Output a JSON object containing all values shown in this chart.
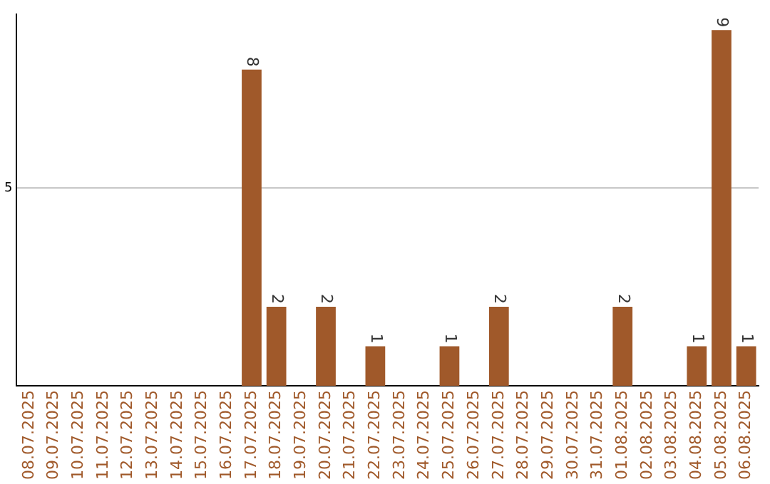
{
  "chart_data": {
    "type": "bar",
    "categories": [
      "08.07.2025",
      "09.07.2025",
      "10.07.2025",
      "11.07.2025",
      "12.07.2025",
      "13.07.2025",
      "14.07.2025",
      "15.07.2025",
      "16.07.2025",
      "17.07.2025",
      "18.07.2025",
      "19.07.2025",
      "20.07.2025",
      "21.07.2025",
      "22.07.2025",
      "23.07.2025",
      "24.07.2025",
      "25.07.2025",
      "26.07.2025",
      "27.07.2025",
      "28.07.2025",
      "29.07.2025",
      "30.07.2025",
      "31.07.2025",
      "01.08.2025",
      "02.08.2025",
      "03.08.2025",
      "04.08.2025",
      "05.08.2025",
      "06.08.2025"
    ],
    "values": [
      0,
      0,
      0,
      0,
      0,
      0,
      0,
      0,
      0,
      8,
      2,
      0,
      2,
      0,
      1,
      0,
      0,
      1,
      0,
      2,
      0,
      0,
      0,
      0,
      2,
      0,
      0,
      1,
      9,
      1
    ],
    "value_labels": [
      null,
      null,
      null,
      null,
      null,
      null,
      null,
      null,
      null,
      "8",
      "2",
      null,
      "2",
      null,
      "1",
      null,
      null,
      "1",
      null,
      "2",
      null,
      null,
      null,
      null,
      "2",
      null,
      null,
      "1",
      "9",
      "1"
    ],
    "color": "#a0592a",
    "ylim": [
      0,
      9.4
    ],
    "yticks": [
      5
    ],
    "grid": "y",
    "legend": false
  }
}
